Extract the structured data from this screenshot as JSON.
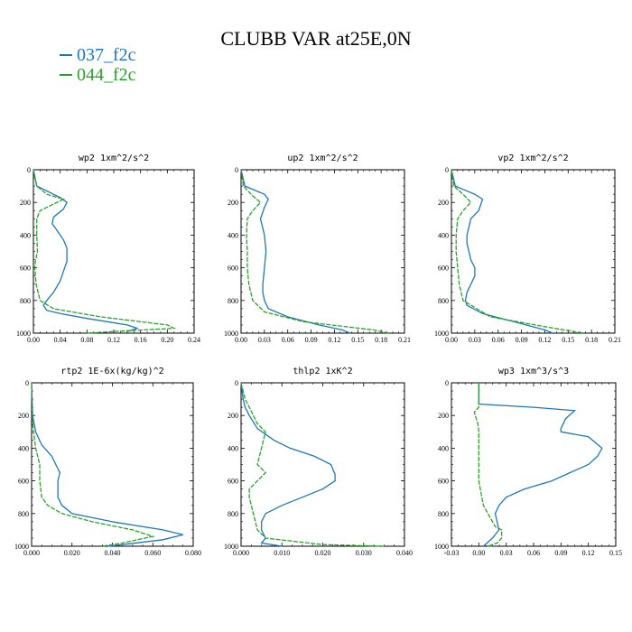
{
  "title": "CLUBB VAR at25E,0N",
  "legend": [
    {
      "label": "037_f2c",
      "color": "#1f77b4"
    },
    {
      "label": "044_f2c",
      "color": "#2ca02c"
    }
  ],
  "chart_data": [
    {
      "type": "line",
      "title": "wp2   1xm^2/s^2",
      "xlim": [
        0,
        0.24
      ],
      "ylim": [
        0,
        1000
      ],
      "y_inverted": true,
      "xticks": [
        "0.00",
        "0.04",
        "0.08",
        "0.12",
        "0.16",
        "0.20",
        "0.24"
      ],
      "yticks": [
        "0",
        "200",
        "400",
        "600",
        "800",
        "1000"
      ],
      "series": [
        {
          "color": "#1f77b4",
          "x": [
            0,
            0.005,
            0.02,
            0.04,
            0.05,
            0.045,
            0.03,
            0.028,
            0.035,
            0.045,
            0.05,
            0.05,
            0.045,
            0.04,
            0.03,
            0.02,
            0.015,
            0.02,
            0.04,
            0.08,
            0.14,
            0.155,
            0.14
          ],
          "y": [
            0,
            100,
            130,
            170,
            200,
            240,
            290,
            330,
            370,
            430,
            480,
            560,
            620,
            680,
            750,
            800,
            830,
            860,
            880,
            910,
            950,
            970,
            990
          ]
        },
        {
          "color": "#2ca02c",
          "x": [
            0,
            0.005,
            0.02,
            0.045,
            0.03,
            0.01,
            0.005,
            0.005,
            0.006,
            0.003,
            0.002,
            0.004,
            0.01,
            0.03,
            0.1,
            0.2,
            0.21,
            0.12,
            0.08
          ],
          "y": [
            0,
            100,
            150,
            180,
            210,
            250,
            300,
            400,
            500,
            560,
            600,
            700,
            800,
            850,
            900,
            950,
            970,
            990,
            1000
          ]
        }
      ]
    },
    {
      "type": "line",
      "title": "up2   1xm^2/s^2",
      "xlim": [
        0,
        0.21
      ],
      "ylim": [
        0,
        1000
      ],
      "y_inverted": true,
      "xticks": [
        "0.00",
        "0.03",
        "0.06",
        "0.09",
        "0.12",
        "0.15",
        "0.18",
        "0.21"
      ],
      "yticks": [
        "0",
        "200",
        "400",
        "600",
        "800",
        "1000"
      ],
      "series": [
        {
          "color": "#1f77b4",
          "x": [
            0,
            0.005,
            0.03,
            0.035,
            0.03,
            0.025,
            0.03,
            0.032,
            0.03,
            0.028,
            0.028,
            0.03,
            0.035,
            0.06,
            0.1,
            0.13,
            0.14
          ],
          "y": [
            0,
            100,
            150,
            180,
            230,
            300,
            400,
            500,
            600,
            700,
            750,
            800,
            850,
            900,
            950,
            980,
            1000
          ]
        },
        {
          "color": "#2ca02c",
          "x": [
            0,
            0.003,
            0.015,
            0.025,
            0.015,
            0.008,
            0.007,
            0.008,
            0.008,
            0.01,
            0.015,
            0.03,
            0.08,
            0.17,
            0.19
          ],
          "y": [
            0,
            100,
            160,
            200,
            250,
            300,
            400,
            500,
            600,
            700,
            800,
            870,
            930,
            980,
            1000
          ]
        }
      ]
    },
    {
      "type": "line",
      "title": "vp2   1xm^2/s^2",
      "xlim": [
        0,
        0.21
      ],
      "ylim": [
        0,
        1000
      ],
      "y_inverted": true,
      "xticks": [
        "0.00",
        "0.03",
        "0.06",
        "0.09",
        "0.12",
        "0.15",
        "0.18",
        "0.21"
      ],
      "yticks": [
        "0",
        "200",
        "400",
        "600",
        "800",
        "1000"
      ],
      "series": [
        {
          "color": "#1f77b4",
          "x": [
            0,
            0.005,
            0.03,
            0.04,
            0.035,
            0.025,
            0.02,
            0.02,
            0.025,
            0.03,
            0.03,
            0.02,
            0.018,
            0.02,
            0.04,
            0.08,
            0.12,
            0.13
          ],
          "y": [
            0,
            100,
            150,
            180,
            250,
            300,
            400,
            450,
            550,
            600,
            650,
            750,
            800,
            830,
            880,
            930,
            980,
            1000
          ]
        },
        {
          "color": "#2ca02c",
          "x": [
            0,
            0.003,
            0.015,
            0.025,
            0.015,
            0.008,
            0.006,
            0.006,
            0.008,
            0.01,
            0.015,
            0.05,
            0.12,
            0.17
          ],
          "y": [
            0,
            100,
            150,
            200,
            250,
            300,
            400,
            500,
            600,
            700,
            800,
            900,
            960,
            1000
          ]
        }
      ]
    },
    {
      "type": "line",
      "title": "rtp2   1E-6x(kg/kg)^2",
      "xlim": [
        0,
        0.08
      ],
      "ylim": [
        0,
        1000
      ],
      "y_inverted": true,
      "xticks": [
        "0.000",
        "0.020",
        "0.040",
        "0.060",
        "0.080"
      ],
      "yticks": [
        "0",
        "200",
        "400",
        "600",
        "800",
        "1000"
      ],
      "series": [
        {
          "color": "#1f77b4",
          "x": [
            0,
            0.0005,
            0.002,
            0.005,
            0.01,
            0.012,
            0.014,
            0.013,
            0.013,
            0.015,
            0.02,
            0.04,
            0.065,
            0.075,
            0.065,
            0.045,
            0.038
          ],
          "y": [
            0,
            200,
            300,
            380,
            450,
            500,
            550,
            600,
            700,
            750,
            800,
            850,
            900,
            930,
            960,
            990,
            1000
          ]
        },
        {
          "color": "#2ca02c",
          "x": [
            0,
            0.0005,
            0.002,
            0.004,
            0.004,
            0.005,
            0.008,
            0.015,
            0.03,
            0.05,
            0.06,
            0.045,
            0.035
          ],
          "y": [
            0,
            250,
            400,
            500,
            600,
            700,
            750,
            800,
            850,
            900,
            940,
            980,
            1000
          ]
        }
      ]
    },
    {
      "type": "line",
      "title": "thlp2   1xK^2",
      "xlim": [
        0,
        0.04
      ],
      "ylim": [
        0,
        1000
      ],
      "y_inverted": true,
      "xticks": [
        "0.000",
        "0.010",
        "0.020",
        "0.030",
        "0.040"
      ],
      "yticks": [
        "0",
        "200",
        "400",
        "600",
        "800",
        "1000"
      ],
      "series": [
        {
          "color": "#1f77b4",
          "x": [
            0,
            0.0005,
            0.001,
            0.002,
            0.004,
            0.008,
            0.012,
            0.018,
            0.022,
            0.023,
            0.023,
            0.02,
            0.015,
            0.01,
            0.006,
            0.005,
            0.005,
            0.006,
            0.005,
            0.01
          ],
          "y": [
            0,
            100,
            150,
            200,
            280,
            350,
            400,
            450,
            500,
            560,
            600,
            650,
            700,
            750,
            800,
            850,
            900,
            950,
            980,
            1000
          ]
        },
        {
          "color": "#2ca02c",
          "x": [
            0,
            0.001,
            0.002,
            0.003,
            0.004,
            0.006,
            0.005,
            0.004,
            0.006,
            0.004,
            0.002,
            0.002,
            0.003,
            0.004,
            0.006,
            0.02,
            0.035
          ],
          "y": [
            0,
            100,
            150,
            200,
            250,
            300,
            400,
            500,
            550,
            600,
            650,
            700,
            800,
            900,
            950,
            990,
            1000
          ]
        }
      ]
    },
    {
      "type": "line",
      "title": "wp3   1xm^3/s^3",
      "xlim": [
        -0.03,
        0.15
      ],
      "ylim": [
        0,
        1000
      ],
      "y_inverted": true,
      "xticks": [
        "-0.03",
        "0.00",
        "0.03",
        "0.06",
        "0.09",
        "0.12",
        "0.15"
      ],
      "yticks": [
        "0",
        "200",
        "400",
        "600",
        "800",
        "1000"
      ],
      "series": [
        {
          "color": "#1f77b4",
          "x": [
            0,
            0,
            0,
            0.06,
            0.105,
            0.095,
            0.09,
            0.09,
            0.12,
            0.135,
            0.13,
            0.12,
            0.1,
            0.08,
            0.05,
            0.03,
            0.022,
            0.018,
            0.022,
            0.015,
            0.005
          ],
          "y": [
            0,
            100,
            130,
            150,
            170,
            220,
            280,
            300,
            330,
            400,
            450,
            500,
            550,
            600,
            650,
            700,
            750,
            800,
            900,
            950,
            1000
          ]
        },
        {
          "color": "#2ca02c",
          "x": [
            0,
            0,
            -0.005,
            -0.001,
            0,
            0,
            0,
            0.005,
            0.015,
            0.018,
            0.025,
            0.025,
            0.02,
            0.01,
            0.015
          ],
          "y": [
            0,
            150,
            180,
            250,
            300,
            400,
            600,
            750,
            850,
            880,
            900,
            950,
            980,
            1000,
            1000
          ]
        }
      ]
    }
  ]
}
